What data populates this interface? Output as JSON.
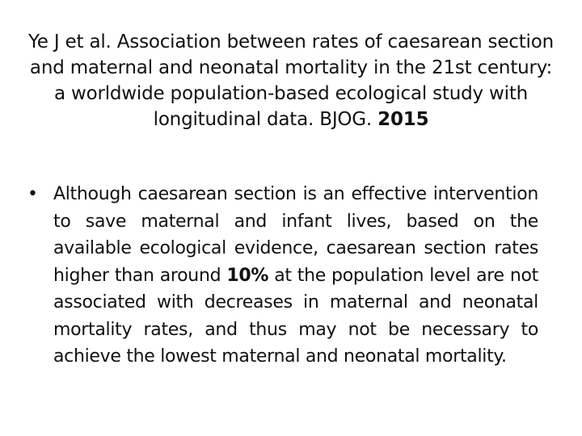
{
  "title": {
    "text": "Ye J et al. Association between rates of caesarean section and maternal and neonatal mortality in the 21st century: a worldwide population-based ecological study with longitudinal data. BJOG. ",
    "year": "2015"
  },
  "bullets": [
    {
      "marker": "•",
      "text_before": "Although caesarean section is an effective intervention to save maternal and infant lives, based on the available ecological evidence, caesarean section rates higher than around ",
      "highlight": "10%",
      "text_after": " at the population level are not associated with decreases in maternal and neonatal mortality rates, and thus may not be necessary to achieve the lowest maternal and neonatal mortality."
    }
  ]
}
